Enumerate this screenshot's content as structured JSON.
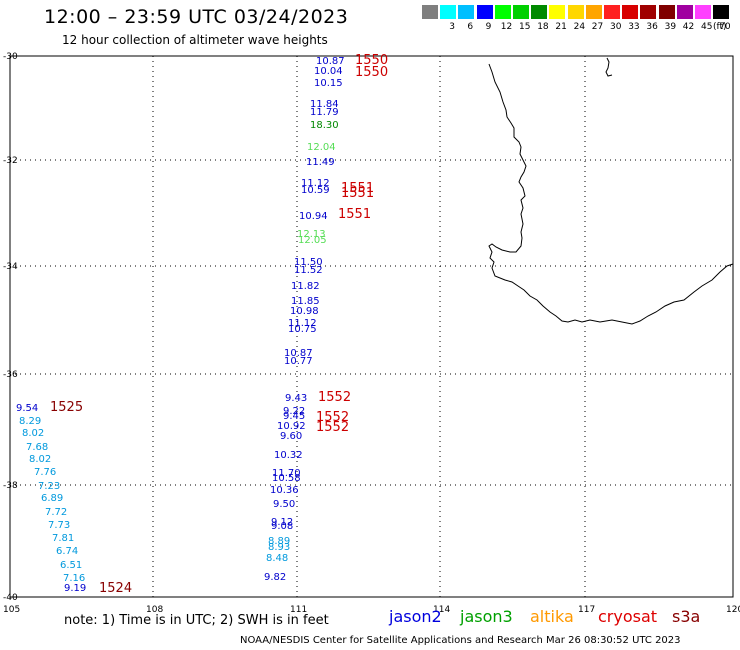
{
  "header": {
    "title": "12:00 – 23:59 UTC 03/24/2023",
    "subtitle": "12 hour collection of altimeter wave heights"
  },
  "legend": {
    "unit": "(ft)",
    "items": [
      {
        "label": "",
        "color": "#7f7f7f"
      },
      {
        "label": "3",
        "color": "#00ffff"
      },
      {
        "label": "6",
        "color": "#00bfff"
      },
      {
        "label": "9",
        "color": "#0000ff"
      },
      {
        "label": "12",
        "color": "#00ff00"
      },
      {
        "label": "15",
        "color": "#00d000"
      },
      {
        "label": "18",
        "color": "#008a00"
      },
      {
        "label": "21",
        "color": "#ffff00"
      },
      {
        "label": "24",
        "color": "#ffd700"
      },
      {
        "label": "27",
        "color": "#ffa500"
      },
      {
        "label": "30",
        "color": "#ff2020"
      },
      {
        "label": "33",
        "color": "#d80000"
      },
      {
        "label": "36",
        "color": "#a00000"
      },
      {
        "label": "39",
        "color": "#800000"
      },
      {
        "label": "42",
        "color": "#a000a0"
      },
      {
        "label": "45",
        "color": "#ff40ff"
      },
      {
        "label": "70",
        "color": "#000000"
      }
    ]
  },
  "map": {
    "lon_ticks": [
      "105",
      "108",
      "111",
      "114",
      "117",
      "120"
    ],
    "lat_ticks": [
      "-30",
      "-32",
      "-34",
      "-36",
      "-38",
      "-40"
    ],
    "tracks": [
      {
        "time": "1550",
        "color": "#cc0000",
        "points": [
          {
            "v": "10.87",
            "c": "#0000cc"
          },
          {
            "v": "10.04",
            "c": "#0000cc"
          },
          {
            "v": "10.15",
            "c": "#0000cc"
          },
          {
            "v": "11.84",
            "c": "#0000cc"
          },
          {
            "v": "11.79",
            "c": "#0000cc"
          },
          {
            "v": "18.30",
            "c": "#008800"
          },
          {
            "v": "12.04",
            "c": "#55dd55"
          },
          {
            "v": "11.49",
            "c": "#0000cc"
          }
        ]
      },
      {
        "time": "1551",
        "color": "#cc0000",
        "points": [
          {
            "v": "11.12",
            "c": "#0000cc"
          },
          {
            "v": "10.59",
            "c": "#0000cc"
          },
          {
            "v": "10.94",
            "c": "#0000cc"
          },
          {
            "v": "12.13",
            "c": "#55dd55"
          },
          {
            "v": "12.05",
            "c": "#55dd55"
          },
          {
            "v": "11.50",
            "c": "#0000cc"
          },
          {
            "v": "11.52",
            "c": "#0000cc"
          },
          {
            "v": "11.82",
            "c": "#0000cc"
          },
          {
            "v": "11.85",
            "c": "#0000cc"
          },
          {
            "v": "10.98",
            "c": "#0000cc"
          },
          {
            "v": "11.12",
            "c": "#0000cc"
          },
          {
            "v": "10.75",
            "c": "#0000cc"
          },
          {
            "v": "10.87",
            "c": "#0000cc"
          },
          {
            "v": "10.77",
            "c": "#0000cc"
          }
        ]
      },
      {
        "time": "1552",
        "color": "#cc0000",
        "points": [
          {
            "v": "9.43",
            "c": "#0000cc"
          },
          {
            "v": "9.22",
            "c": "#0000cc"
          },
          {
            "v": "9.45",
            "c": "#0000cc"
          },
          {
            "v": "10.92",
            "c": "#0000cc"
          },
          {
            "v": "9.60",
            "c": "#0000cc"
          },
          {
            "v": "10.32",
            "c": "#0000cc"
          },
          {
            "v": "11.70",
            "c": "#0000cc"
          },
          {
            "v": "10.58",
            "c": "#0000cc"
          },
          {
            "v": "10.36",
            "c": "#0000cc"
          },
          {
            "v": "9.50",
            "c": "#0000cc"
          },
          {
            "v": "9.12",
            "c": "#0000cc"
          },
          {
            "v": "9.08",
            "c": "#0000cc"
          },
          {
            "v": "8.89",
            "c": "#0099dd"
          },
          {
            "v": "8.93",
            "c": "#0099dd"
          },
          {
            "v": "8.48",
            "c": "#0099dd"
          },
          {
            "v": "9.82",
            "c": "#0000cc"
          }
        ]
      },
      {
        "time": "1525",
        "color": "#880000",
        "points": [
          {
            "v": "9.54",
            "c": "#0000cc"
          },
          {
            "v": "8.29",
            "c": "#0099dd"
          },
          {
            "v": "8.02",
            "c": "#0099dd"
          },
          {
            "v": "7.68",
            "c": "#0099dd"
          },
          {
            "v": "8.02",
            "c": "#0099dd"
          },
          {
            "v": "7.76",
            "c": "#0099dd"
          },
          {
            "v": "7.23",
            "c": "#0099dd"
          },
          {
            "v": "6.89",
            "c": "#0099dd"
          },
          {
            "v": "7.72",
            "c": "#0099dd"
          },
          {
            "v": "7.73",
            "c": "#0099dd"
          },
          {
            "v": "7.81",
            "c": "#0099dd"
          },
          {
            "v": "6.74",
            "c": "#0099dd"
          },
          {
            "v": "6.51",
            "c": "#0099dd"
          },
          {
            "v": "7.16",
            "c": "#0099dd"
          },
          {
            "v": "9.19",
            "c": "#0000cc"
          }
        ]
      },
      {
        "time": "1524",
        "color": "#880000",
        "points": []
      }
    ]
  },
  "footer": {
    "note": "note:  1) Time is in UTC;  2) SWH is in feet",
    "credit": "NOAA/NESDIS Center for Satellite Applications and Research    Mar 26 08:30:52 UTC 2023",
    "satellites": [
      {
        "name": "jason2",
        "color": "#0000dd"
      },
      {
        "name": "jason3",
        "color": "#00a000"
      },
      {
        "name": "altika",
        "color": "#ff9900"
      },
      {
        "name": "cryosat",
        "color": "#dd0000"
      },
      {
        "name": "s3a",
        "color": "#880000"
      }
    ]
  }
}
